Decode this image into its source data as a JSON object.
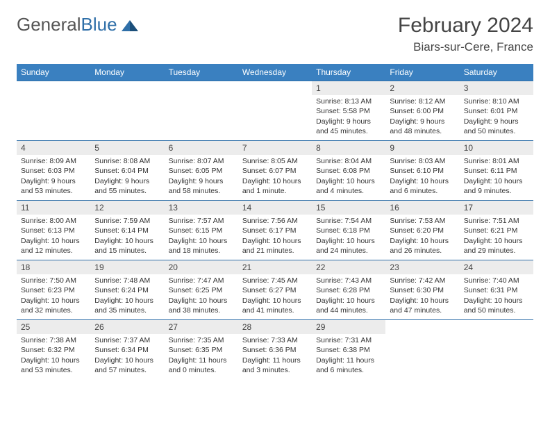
{
  "brand": {
    "part1": "General",
    "part2": "Blue"
  },
  "title": "February 2024",
  "location": "Biars-sur-Cere, France",
  "colors": {
    "header_bg": "#3a80c0",
    "header_text": "#ffffff",
    "border": "#2f6fa8",
    "daynum_bg": "#ececec",
    "text": "#333333"
  },
  "day_headers": [
    "Sunday",
    "Monday",
    "Tuesday",
    "Wednesday",
    "Thursday",
    "Friday",
    "Saturday"
  ],
  "weeks": [
    [
      null,
      null,
      null,
      null,
      {
        "n": "1",
        "sunrise": "8:13 AM",
        "sunset": "5:58 PM",
        "daylight": "9 hours and 45 minutes."
      },
      {
        "n": "2",
        "sunrise": "8:12 AM",
        "sunset": "6:00 PM",
        "daylight": "9 hours and 48 minutes."
      },
      {
        "n": "3",
        "sunrise": "8:10 AM",
        "sunset": "6:01 PM",
        "daylight": "9 hours and 50 minutes."
      }
    ],
    [
      {
        "n": "4",
        "sunrise": "8:09 AM",
        "sunset": "6:03 PM",
        "daylight": "9 hours and 53 minutes."
      },
      {
        "n": "5",
        "sunrise": "8:08 AM",
        "sunset": "6:04 PM",
        "daylight": "9 hours and 55 minutes."
      },
      {
        "n": "6",
        "sunrise": "8:07 AM",
        "sunset": "6:05 PM",
        "daylight": "9 hours and 58 minutes."
      },
      {
        "n": "7",
        "sunrise": "8:05 AM",
        "sunset": "6:07 PM",
        "daylight": "10 hours and 1 minute."
      },
      {
        "n": "8",
        "sunrise": "8:04 AM",
        "sunset": "6:08 PM",
        "daylight": "10 hours and 4 minutes."
      },
      {
        "n": "9",
        "sunrise": "8:03 AM",
        "sunset": "6:10 PM",
        "daylight": "10 hours and 6 minutes."
      },
      {
        "n": "10",
        "sunrise": "8:01 AM",
        "sunset": "6:11 PM",
        "daylight": "10 hours and 9 minutes."
      }
    ],
    [
      {
        "n": "11",
        "sunrise": "8:00 AM",
        "sunset": "6:13 PM",
        "daylight": "10 hours and 12 minutes."
      },
      {
        "n": "12",
        "sunrise": "7:59 AM",
        "sunset": "6:14 PM",
        "daylight": "10 hours and 15 minutes."
      },
      {
        "n": "13",
        "sunrise": "7:57 AM",
        "sunset": "6:15 PM",
        "daylight": "10 hours and 18 minutes."
      },
      {
        "n": "14",
        "sunrise": "7:56 AM",
        "sunset": "6:17 PM",
        "daylight": "10 hours and 21 minutes."
      },
      {
        "n": "15",
        "sunrise": "7:54 AM",
        "sunset": "6:18 PM",
        "daylight": "10 hours and 24 minutes."
      },
      {
        "n": "16",
        "sunrise": "7:53 AM",
        "sunset": "6:20 PM",
        "daylight": "10 hours and 26 minutes."
      },
      {
        "n": "17",
        "sunrise": "7:51 AM",
        "sunset": "6:21 PM",
        "daylight": "10 hours and 29 minutes."
      }
    ],
    [
      {
        "n": "18",
        "sunrise": "7:50 AM",
        "sunset": "6:23 PM",
        "daylight": "10 hours and 32 minutes."
      },
      {
        "n": "19",
        "sunrise": "7:48 AM",
        "sunset": "6:24 PM",
        "daylight": "10 hours and 35 minutes."
      },
      {
        "n": "20",
        "sunrise": "7:47 AM",
        "sunset": "6:25 PM",
        "daylight": "10 hours and 38 minutes."
      },
      {
        "n": "21",
        "sunrise": "7:45 AM",
        "sunset": "6:27 PM",
        "daylight": "10 hours and 41 minutes."
      },
      {
        "n": "22",
        "sunrise": "7:43 AM",
        "sunset": "6:28 PM",
        "daylight": "10 hours and 44 minutes."
      },
      {
        "n": "23",
        "sunrise": "7:42 AM",
        "sunset": "6:30 PM",
        "daylight": "10 hours and 47 minutes."
      },
      {
        "n": "24",
        "sunrise": "7:40 AM",
        "sunset": "6:31 PM",
        "daylight": "10 hours and 50 minutes."
      }
    ],
    [
      {
        "n": "25",
        "sunrise": "7:38 AM",
        "sunset": "6:32 PM",
        "daylight": "10 hours and 53 minutes."
      },
      {
        "n": "26",
        "sunrise": "7:37 AM",
        "sunset": "6:34 PM",
        "daylight": "10 hours and 57 minutes."
      },
      {
        "n": "27",
        "sunrise": "7:35 AM",
        "sunset": "6:35 PM",
        "daylight": "11 hours and 0 minutes."
      },
      {
        "n": "28",
        "sunrise": "7:33 AM",
        "sunset": "6:36 PM",
        "daylight": "11 hours and 3 minutes."
      },
      {
        "n": "29",
        "sunrise": "7:31 AM",
        "sunset": "6:38 PM",
        "daylight": "11 hours and 6 minutes."
      },
      null,
      null
    ]
  ]
}
